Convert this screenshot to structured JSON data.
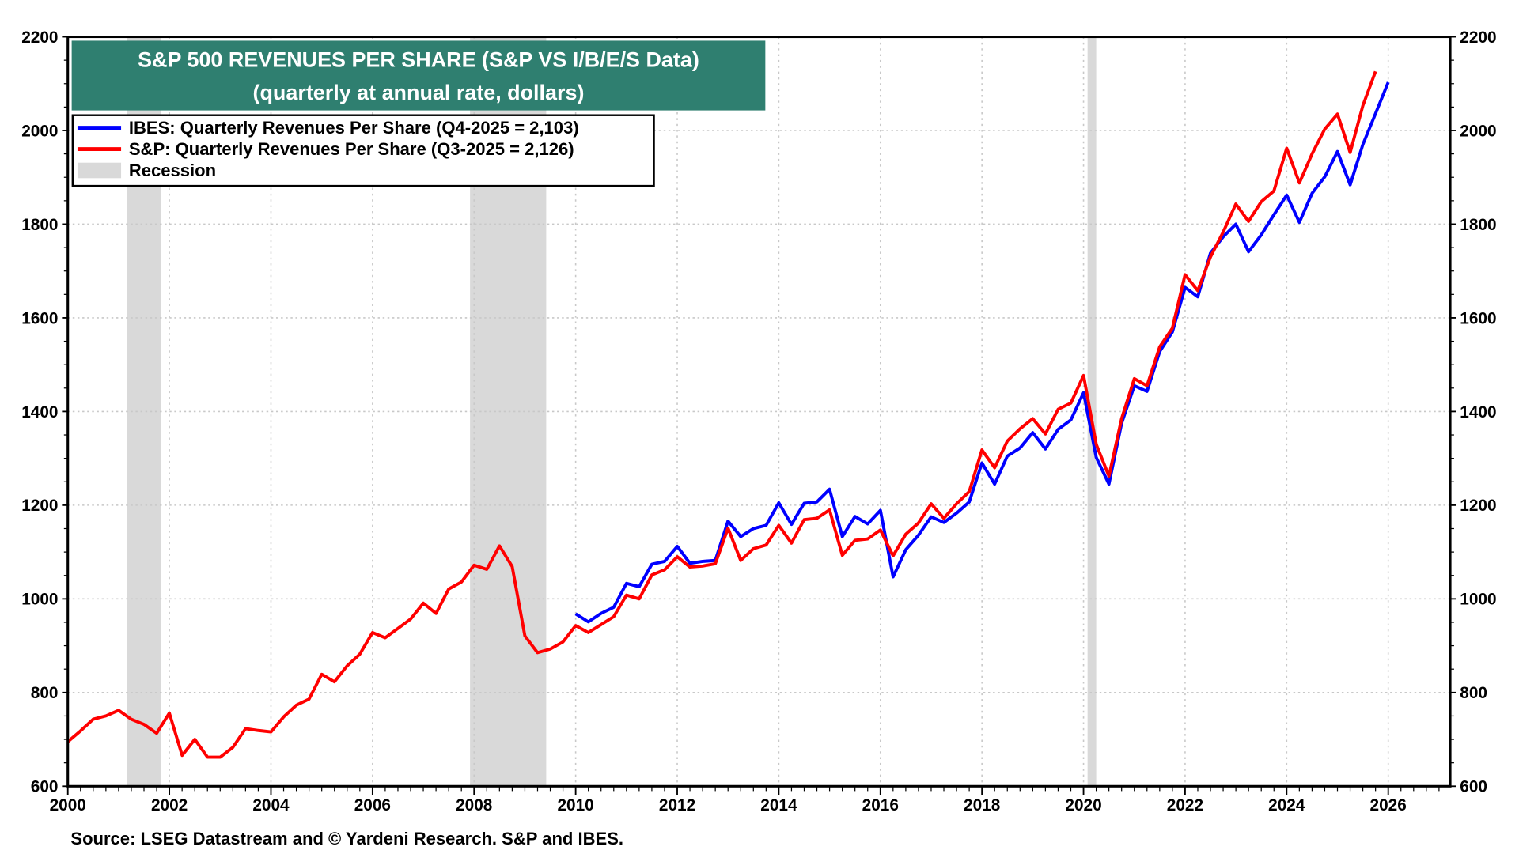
{
  "chart_data": {
    "type": "line",
    "title": "S&P 500 REVENUES PER SHARE (S&P VS I/B/E/S Data)",
    "subtitle": "(quarterly at annual rate, dollars)",
    "xlabel": "",
    "ylabel": "",
    "xlim": [
      2000,
      2027.2
    ],
    "ylim": [
      600,
      2200
    ],
    "x_ticks": [
      "2000",
      "2002",
      "2004",
      "2006",
      "2008",
      "2010",
      "2012",
      "2014",
      "2016",
      "2018",
      "2020",
      "2022",
      "2024",
      "2026"
    ],
    "y_ticks": [
      "600",
      "800",
      "1000",
      "1200",
      "1400",
      "1600",
      "1800",
      "2000",
      "2200"
    ],
    "grid": true,
    "legend_placement": "top-left",
    "source": "Source: LSEG Datastream and © Yardeni Research. S&P and IBES.",
    "title_bg_color": "#2f7f70",
    "recession_color": "#d9d9d9",
    "legend": [
      {
        "label": "IBES: Quarterly Revenues Per Share (Q4-2025 = 2,103)",
        "color": "#0000ff",
        "kind": "line"
      },
      {
        "label": "S&P: Quarterly Revenues Per Share (Q3-2025 = 2,126)",
        "color": "#ff0000",
        "kind": "line"
      },
      {
        "label": "Recession",
        "color": "#d9d9d9",
        "kind": "box"
      }
    ],
    "recessions": [
      [
        2001.17,
        2001.83
      ],
      [
        2007.92,
        2009.42
      ],
      [
        2020.08,
        2020.25
      ]
    ],
    "series": [
      {
        "name": "IBES: Quarterly Revenues Per Share",
        "color": "#0000ff",
        "x_start": 2010.0,
        "x_step": 0.25,
        "values": [
          968,
          951,
          969,
          982,
          1033,
          1026,
          1074,
          1080,
          1112,
          1076,
          1080,
          1082,
          1166,
          1133,
          1150,
          1157,
          1205,
          1159,
          1204,
          1207,
          1234,
          1133,
          1176,
          1160,
          1189,
          1047,
          1105,
          1136,
          1175,
          1163,
          1183,
          1207,
          1290,
          1245,
          1305,
          1322,
          1355,
          1320,
          1362,
          1382,
          1440,
          1302,
          1245,
          1375,
          1455,
          1443,
          1528,
          1570,
          1665,
          1645,
          1738,
          1773,
          1800,
          1741,
          1777,
          1820,
          1862,
          1804,
          1866,
          1901,
          1955,
          1884,
          1970,
          2036,
          2103
        ]
      },
      {
        "name": "S&P: Quarterly Revenues Per Share",
        "color": "#ff0000",
        "x_start": 2000.0,
        "x_step": 0.25,
        "values": [
          695,
          718,
          743,
          750,
          762,
          743,
          732,
          713,
          756,
          666,
          700,
          662,
          662,
          683,
          723,
          719,
          716,
          748,
          773,
          786,
          839,
          823,
          857,
          882,
          928,
          917,
          937,
          957,
          991,
          969,
          1021,
          1036,
          1072,
          1063,
          1113,
          1069,
          921,
          885,
          893,
          908,
          943,
          928,
          945,
          962,
          1008,
          1000,
          1051,
          1062,
          1090,
          1068,
          1070,
          1075,
          1151,
          1082,
          1107,
          1115,
          1157,
          1119,
          1169,
          1172,
          1190,
          1093,
          1125,
          1128,
          1147,
          1092,
          1138,
          1162,
          1203,
          1172,
          1203,
          1229,
          1318,
          1280,
          1337,
          1363,
          1385,
          1352,
          1405,
          1418,
          1477,
          1330,
          1262,
          1385,
          1470,
          1455,
          1538,
          1578,
          1692,
          1658,
          1730,
          1783,
          1843,
          1806,
          1848,
          1871,
          1962,
          1888,
          1950,
          2003,
          2035,
          1953,
          2053,
          2126
        ]
      }
    ]
  }
}
